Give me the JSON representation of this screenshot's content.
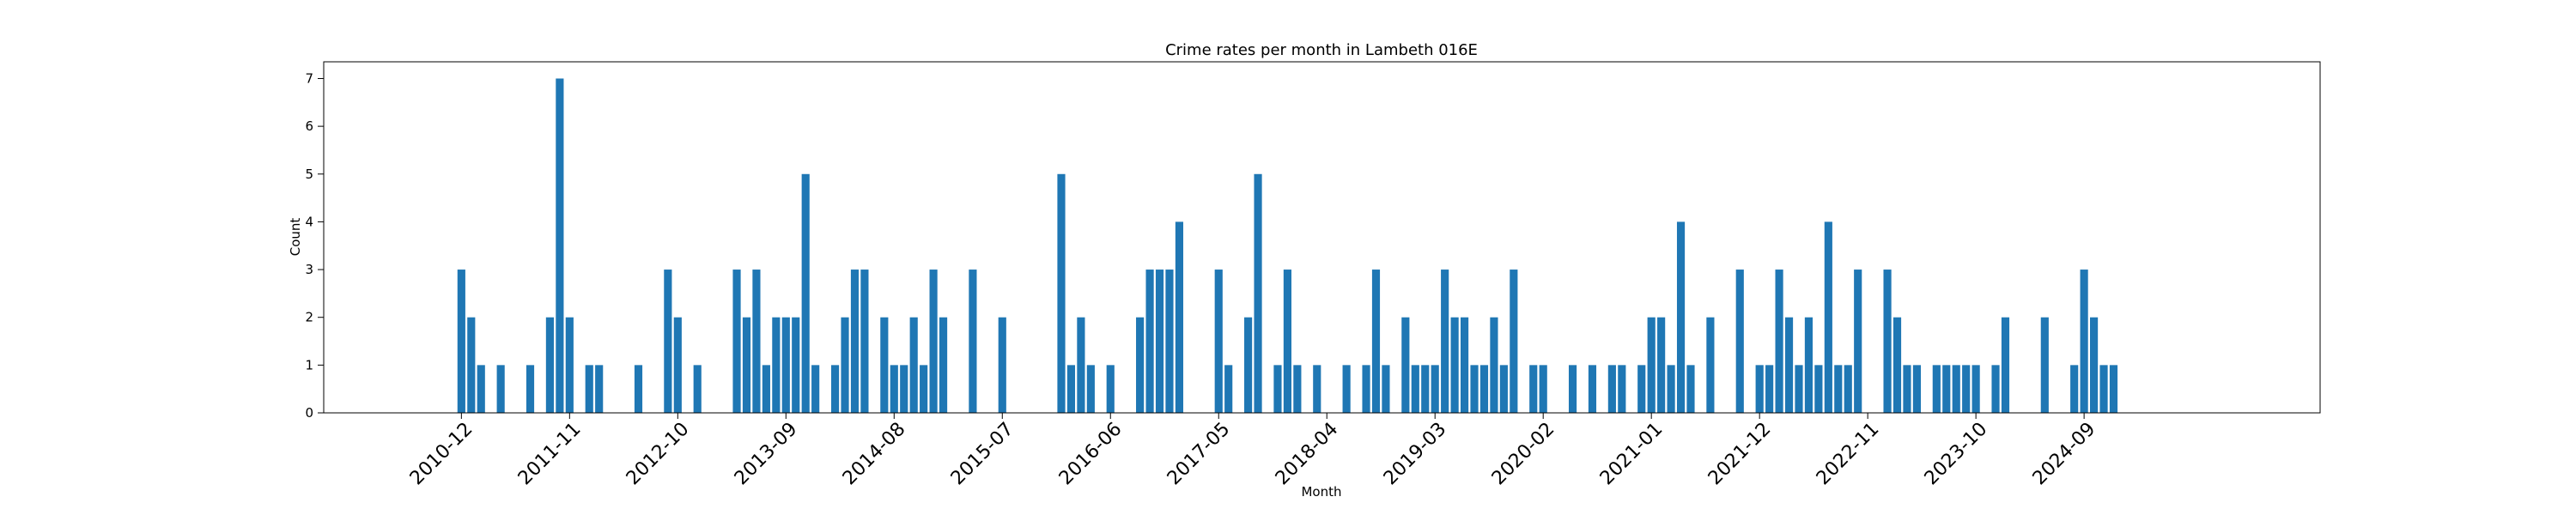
{
  "chart_data": {
    "type": "bar",
    "title": "Crime rates per month in Lambeth 016E",
    "xlabel": "Month",
    "ylabel": "Count",
    "ylim": [
      0,
      7.35
    ],
    "yticks": [
      0,
      1,
      2,
      3,
      4,
      5,
      6,
      7
    ],
    "xlim": [
      "2009-10",
      "2026-09"
    ],
    "xtick_labels": [
      "2010-12",
      "2011-11",
      "2012-10",
      "2013-09",
      "2014-08",
      "2015-07",
      "2016-06",
      "2017-05",
      "2018-04",
      "2019-03",
      "2020-02",
      "2021-01",
      "2021-12",
      "2022-11",
      "2023-10",
      "2024-09"
    ],
    "bar_color": "#1f77b4",
    "grid": false,
    "legend": "none",
    "points": [
      {
        "x": "2010-12",
        "y": 3
      },
      {
        "x": "2011-01",
        "y": 2
      },
      {
        "x": "2011-02",
        "y": 1
      },
      {
        "x": "2011-04",
        "y": 1
      },
      {
        "x": "2011-07",
        "y": 1
      },
      {
        "x": "2011-09",
        "y": 2
      },
      {
        "x": "2011-10",
        "y": 7
      },
      {
        "x": "2011-11",
        "y": 2
      },
      {
        "x": "2012-01",
        "y": 1
      },
      {
        "x": "2012-02",
        "y": 1
      },
      {
        "x": "2012-06",
        "y": 1
      },
      {
        "x": "2012-09",
        "y": 3
      },
      {
        "x": "2012-10",
        "y": 2
      },
      {
        "x": "2012-12",
        "y": 1
      },
      {
        "x": "2013-04",
        "y": 3
      },
      {
        "x": "2013-05",
        "y": 2
      },
      {
        "x": "2013-06",
        "y": 3
      },
      {
        "x": "2013-07",
        "y": 1
      },
      {
        "x": "2013-08",
        "y": 2
      },
      {
        "x": "2013-09",
        "y": 2
      },
      {
        "x": "2013-10",
        "y": 2
      },
      {
        "x": "2013-11",
        "y": 5
      },
      {
        "x": "2013-12",
        "y": 1
      },
      {
        "x": "2014-02",
        "y": 1
      },
      {
        "x": "2014-03",
        "y": 2
      },
      {
        "x": "2014-04",
        "y": 3
      },
      {
        "x": "2014-05",
        "y": 3
      },
      {
        "x": "2014-07",
        "y": 2
      },
      {
        "x": "2014-08",
        "y": 1
      },
      {
        "x": "2014-09",
        "y": 1
      },
      {
        "x": "2014-10",
        "y": 2
      },
      {
        "x": "2014-11",
        "y": 1
      },
      {
        "x": "2014-12",
        "y": 3
      },
      {
        "x": "2015-01",
        "y": 2
      },
      {
        "x": "2015-04",
        "y": 3
      },
      {
        "x": "2015-07",
        "y": 2
      },
      {
        "x": "2016-01",
        "y": 5
      },
      {
        "x": "2016-02",
        "y": 1
      },
      {
        "x": "2016-03",
        "y": 2
      },
      {
        "x": "2016-04",
        "y": 1
      },
      {
        "x": "2016-06",
        "y": 1
      },
      {
        "x": "2016-09",
        "y": 2
      },
      {
        "x": "2016-10",
        "y": 3
      },
      {
        "x": "2016-11",
        "y": 3
      },
      {
        "x": "2016-12",
        "y": 3
      },
      {
        "x": "2017-01",
        "y": 4
      },
      {
        "x": "2017-05",
        "y": 3
      },
      {
        "x": "2017-06",
        "y": 1
      },
      {
        "x": "2017-08",
        "y": 2
      },
      {
        "x": "2017-09",
        "y": 5
      },
      {
        "x": "2017-11",
        "y": 1
      },
      {
        "x": "2017-12",
        "y": 3
      },
      {
        "x": "2018-01",
        "y": 1
      },
      {
        "x": "2018-03",
        "y": 1
      },
      {
        "x": "2018-06",
        "y": 1
      },
      {
        "x": "2018-08",
        "y": 1
      },
      {
        "x": "2018-09",
        "y": 3
      },
      {
        "x": "2018-10",
        "y": 1
      },
      {
        "x": "2018-12",
        "y": 2
      },
      {
        "x": "2019-01",
        "y": 1
      },
      {
        "x": "2019-02",
        "y": 1
      },
      {
        "x": "2019-03",
        "y": 1
      },
      {
        "x": "2019-04",
        "y": 3
      },
      {
        "x": "2019-05",
        "y": 2
      },
      {
        "x": "2019-06",
        "y": 2
      },
      {
        "x": "2019-07",
        "y": 1
      },
      {
        "x": "2019-08",
        "y": 1
      },
      {
        "x": "2019-09",
        "y": 2
      },
      {
        "x": "2019-10",
        "y": 1
      },
      {
        "x": "2019-11",
        "y": 3
      },
      {
        "x": "2020-01",
        "y": 1
      },
      {
        "x": "2020-02",
        "y": 1
      },
      {
        "x": "2020-05",
        "y": 1
      },
      {
        "x": "2020-07",
        "y": 1
      },
      {
        "x": "2020-09",
        "y": 1
      },
      {
        "x": "2020-10",
        "y": 1
      },
      {
        "x": "2020-12",
        "y": 1
      },
      {
        "x": "2021-01",
        "y": 2
      },
      {
        "x": "2021-02",
        "y": 2
      },
      {
        "x": "2021-03",
        "y": 1
      },
      {
        "x": "2021-04",
        "y": 4
      },
      {
        "x": "2021-05",
        "y": 1
      },
      {
        "x": "2021-07",
        "y": 2
      },
      {
        "x": "2021-10",
        "y": 3
      },
      {
        "x": "2021-12",
        "y": 1
      },
      {
        "x": "2022-01",
        "y": 1
      },
      {
        "x": "2022-02",
        "y": 3
      },
      {
        "x": "2022-03",
        "y": 2
      },
      {
        "x": "2022-04",
        "y": 1
      },
      {
        "x": "2022-05",
        "y": 2
      },
      {
        "x": "2022-06",
        "y": 1
      },
      {
        "x": "2022-07",
        "y": 4
      },
      {
        "x": "2022-08",
        "y": 1
      },
      {
        "x": "2022-09",
        "y": 1
      },
      {
        "x": "2022-10",
        "y": 3
      },
      {
        "x": "2023-01",
        "y": 3
      },
      {
        "x": "2023-02",
        "y": 2
      },
      {
        "x": "2023-03",
        "y": 1
      },
      {
        "x": "2023-04",
        "y": 1
      },
      {
        "x": "2023-06",
        "y": 1
      },
      {
        "x": "2023-07",
        "y": 1
      },
      {
        "x": "2023-08",
        "y": 1
      },
      {
        "x": "2023-09",
        "y": 1
      },
      {
        "x": "2023-10",
        "y": 1
      },
      {
        "x": "2023-12",
        "y": 1
      },
      {
        "x": "2024-01",
        "y": 2
      },
      {
        "x": "2024-05",
        "y": 2
      },
      {
        "x": "2024-08",
        "y": 1
      },
      {
        "x": "2024-09",
        "y": 3
      },
      {
        "x": "2024-10",
        "y": 2
      },
      {
        "x": "2024-11",
        "y": 1
      },
      {
        "x": "2024-12",
        "y": 1
      }
    ]
  }
}
